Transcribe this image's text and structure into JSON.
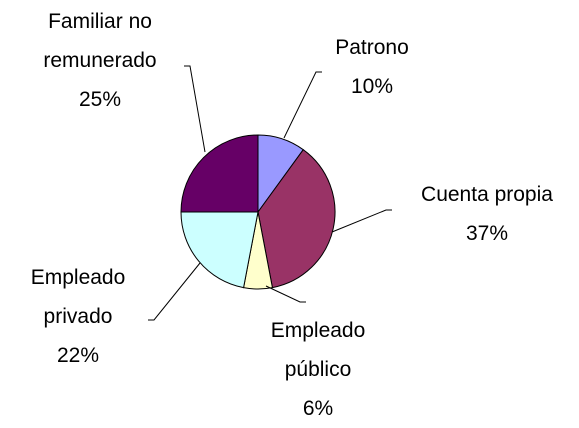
{
  "chart_data": {
    "type": "pie",
    "categories": [
      "Patrono",
      "Cuenta propia",
      "Empleado público",
      "Empleado privado",
      "Familiar no remunerado"
    ],
    "values": [
      10,
      37,
      6,
      22,
      25
    ],
    "value_labels": [
      "10%",
      "37%",
      "6%",
      "22%",
      "25%"
    ],
    "colors": [
      "#9999ff",
      "#993366",
      "#ffffcc",
      "#ccffff",
      "#660066"
    ]
  }
}
